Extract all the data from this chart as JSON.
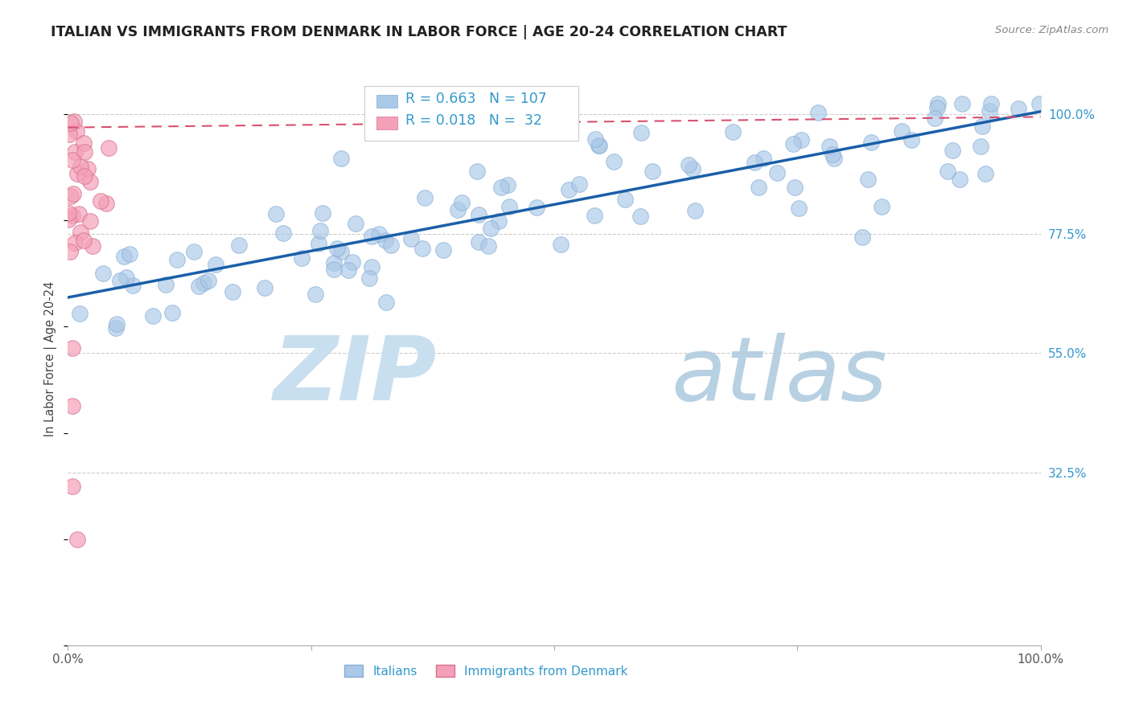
{
  "title": "ITALIAN VS IMMIGRANTS FROM DENMARK IN LABOR FORCE | AGE 20-24 CORRELATION CHART",
  "source": "Source: ZipAtlas.com",
  "ylabel": "In Labor Force | Age 20-24",
  "r_italian": 0.663,
  "n_italian": 107,
  "r_denmark": 0.018,
  "n_denmark": 32,
  "background_color": "#ffffff",
  "title_color": "#222222",
  "blue_dot_color": "#aac8e8",
  "blue_dot_edge": "#88aed4",
  "pink_dot_color": "#f4a0b8",
  "pink_dot_edge": "#d87090",
  "blue_line_color": "#1a5fa8",
  "pink_line_color": "#d85070",
  "legend_label_italian": "Italians",
  "legend_label_denmark": "Immigrants from Denmark",
  "ytick_values": [
    1.0,
    0.775,
    0.55,
    0.325
  ],
  "ytick_labels": [
    "100.0%",
    "77.5%",
    "55.0%",
    "32.5%"
  ],
  "ymin": 0.0,
  "ymax": 1.08,
  "xmin": 0.0,
  "xmax": 1.0,
  "blue_trend_x0": 0.0,
  "blue_trend_y0": 0.655,
  "blue_trend_x1": 1.0,
  "blue_trend_y1": 1.005,
  "pink_trend_x0": 0.0,
  "pink_trend_y0": 0.975,
  "pink_trend_x1": 1.0,
  "pink_trend_y1": 0.995,
  "watermark_zip_color": "#c8dff0",
  "watermark_atlas_color": "#b0cce0"
}
